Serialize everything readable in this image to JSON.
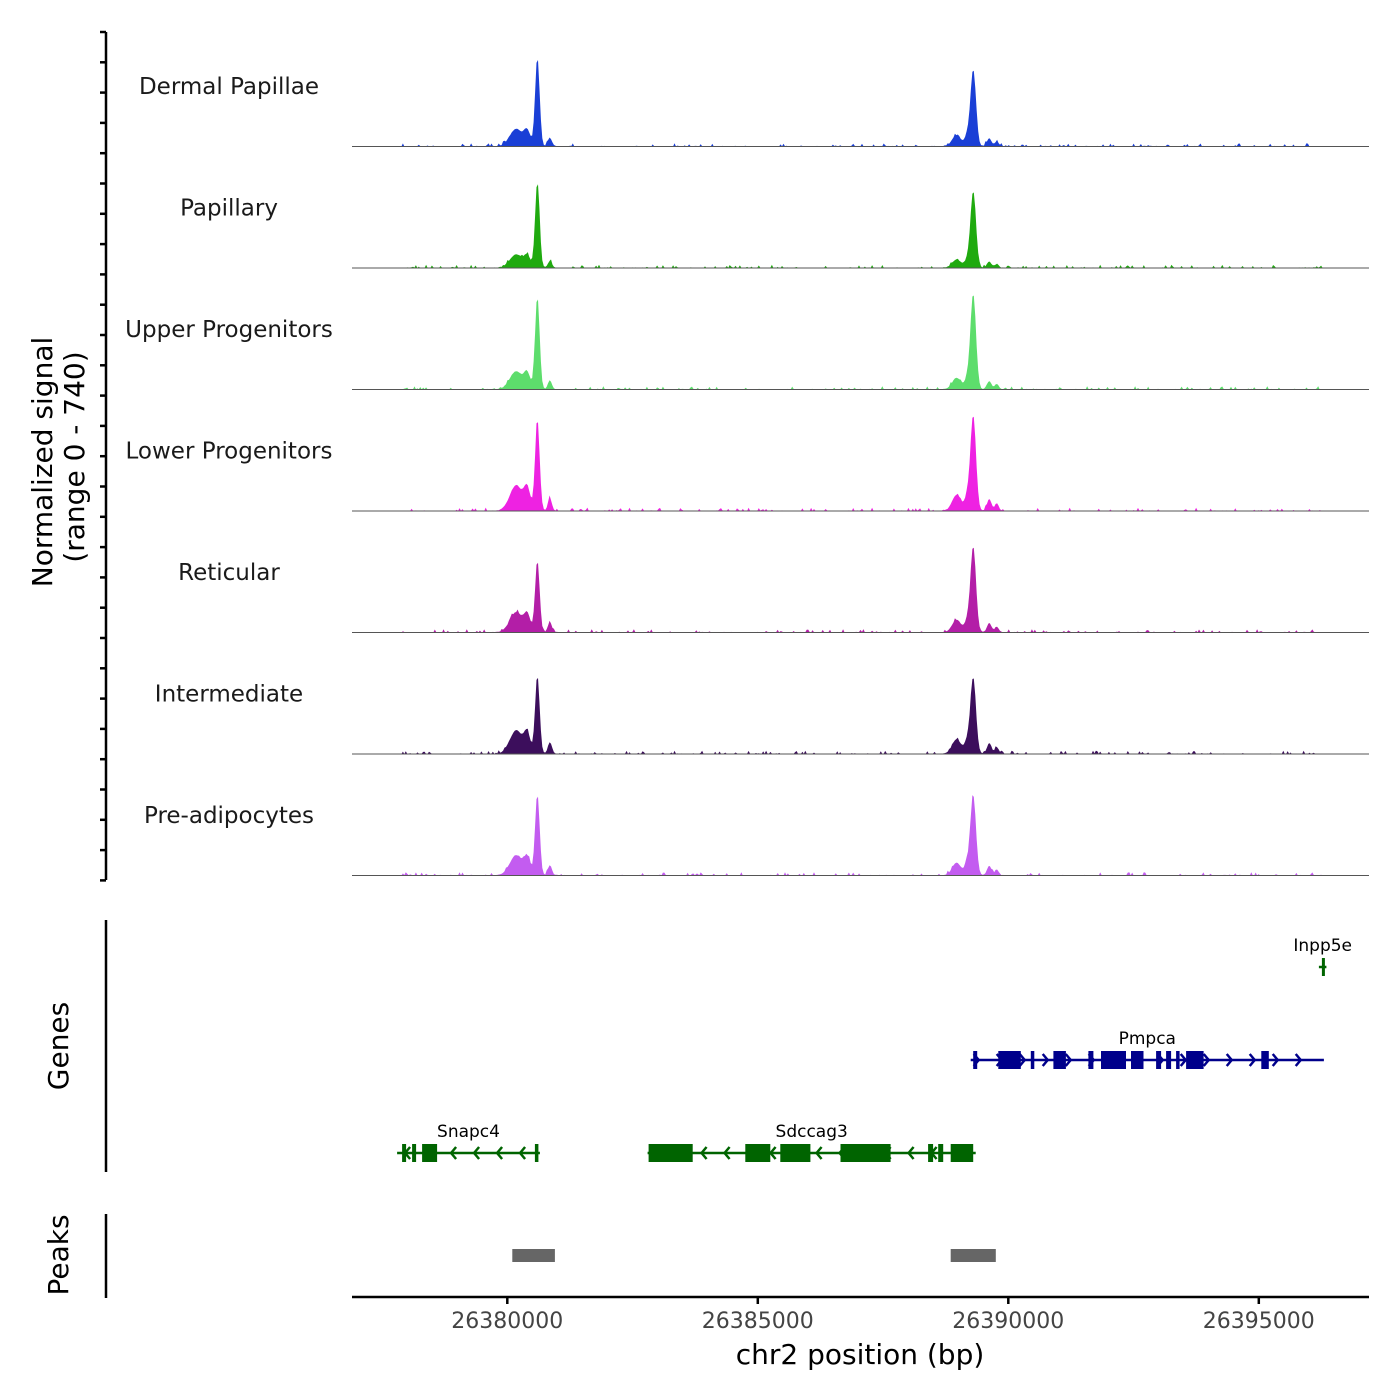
{
  "chart_data": {
    "type": "area",
    "title": "",
    "ylabel_line1": "Normalized signal",
    "ylabel_line2": "(range 0 - 740)",
    "ylim": [
      0,
      740
    ],
    "xlabel": "chr2 position (bp)",
    "xlim": [
      26376900,
      26397200
    ],
    "xticks": [
      26380000,
      26385000,
      26390000,
      26395000
    ],
    "xtick_labels": [
      "26380000",
      "26385000",
      "26390000",
      "26395000"
    ],
    "grid": false,
    "tracks": [
      {
        "name": "Dermal Papillae",
        "color": "#1a3fd6",
        "peak1": 0.93,
        "peak2": 0.8,
        "shoulder": 0.26
      },
      {
        "name": "Papillary",
        "color": "#1faa0f",
        "peak1": 0.9,
        "peak2": 0.8,
        "shoulder": 0.2
      },
      {
        "name": "Upper Progenitors",
        "color": "#5ddd6c",
        "peak1": 0.97,
        "peak2": 1.0,
        "shoulder": 0.27
      },
      {
        "name": "Lower Progenitors",
        "color": "#ee22e2",
        "peak1": 0.95,
        "peak2": 1.0,
        "shoulder": 0.38
      },
      {
        "name": "Reticular",
        "color": "#b31ea7",
        "peak1": 0.75,
        "peak2": 0.9,
        "shoulder": 0.3
      },
      {
        "name": "Intermediate",
        "color": "#3c0e5c",
        "peak1": 0.82,
        "peak2": 0.8,
        "shoulder": 0.35
      },
      {
        "name": "Pre-adipocytes",
        "color": "#c35cf0",
        "peak1": 0.85,
        "peak2": 0.83,
        "shoulder": 0.3
      }
    ],
    "genes_label": "Genes",
    "genes": [
      {
        "name": "Inpp5e",
        "strand": "-",
        "start": 26396200,
        "end": 26396350,
        "row": 0,
        "color": "#006400",
        "exons": [
          [
            26396260,
            26396320
          ]
        ]
      },
      {
        "name": "Pmpca",
        "strand": "+",
        "start": 26389250,
        "end": 26396300,
        "row": 1,
        "color": "#00008b",
        "exons": [
          [
            26389300,
            26389380
          ],
          [
            26389800,
            26390250
          ],
          [
            26390450,
            26390520
          ],
          [
            26390900,
            26391150
          ],
          [
            26391600,
            26391700
          ],
          [
            26391850,
            26392350
          ],
          [
            26392450,
            26392700
          ],
          [
            26392950,
            26393050
          ],
          [
            26393150,
            26393250
          ],
          [
            26393350,
            26393420
          ],
          [
            26393550,
            26393900
          ],
          [
            26395050,
            26395200
          ]
        ]
      },
      {
        "name": "Snapc4",
        "strand": "-",
        "start": 26377800,
        "end": 26380650,
        "row": 2,
        "color": "#006400",
        "exons": [
          [
            26377900,
            26377980
          ],
          [
            26378100,
            26378180
          ],
          [
            26378300,
            26378600
          ],
          [
            26380550,
            26380620
          ]
        ]
      },
      {
        "name": "Sdccag3",
        "strand": "-",
        "start": 26382800,
        "end": 26389350,
        "row": 2,
        "color": "#006400",
        "exons": [
          [
            26382820,
            26383700
          ],
          [
            26384750,
            26385250
          ],
          [
            26385450,
            26386050
          ],
          [
            26386650,
            26387650
          ],
          [
            26388400,
            26388500
          ],
          [
            26388600,
            26388700
          ],
          [
            26388850,
            26389300
          ]
        ]
      }
    ],
    "peaks_label": "Peaks",
    "peaks": [
      {
        "start": 26380100,
        "end": 26380950
      },
      {
        "start": 26388850,
        "end": 26389750
      }
    ],
    "peak_color": "#666666"
  }
}
